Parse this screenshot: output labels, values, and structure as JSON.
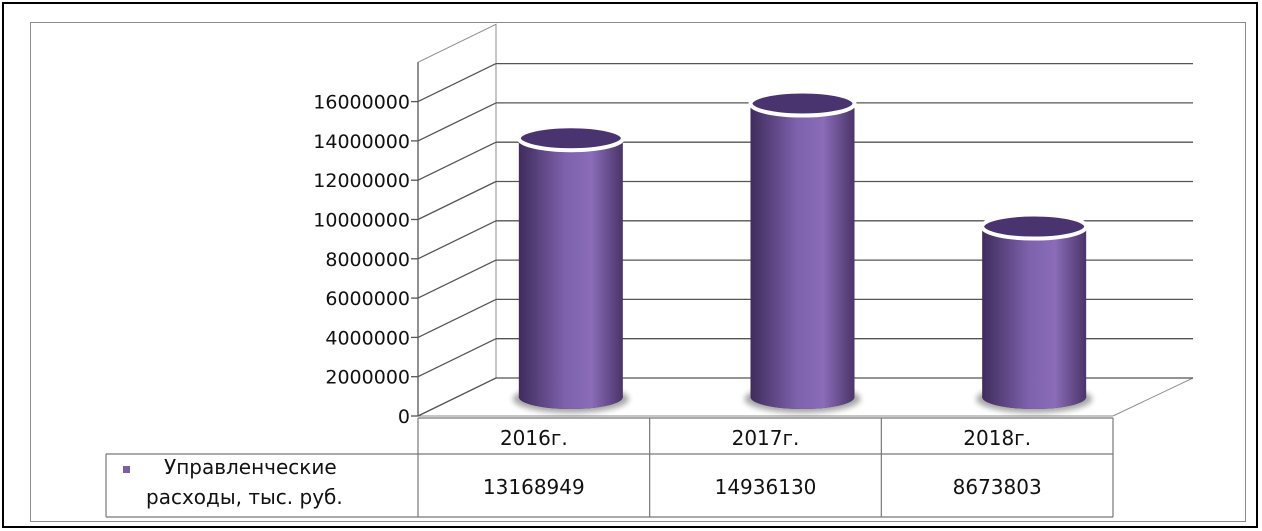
{
  "chart_data": {
    "type": "bar",
    "categories": [
      "2016г.",
      "2017г.",
      "2018г."
    ],
    "series": [
      {
        "name": "Управленческие расходы, тыс. руб.",
        "name_lines": [
          "Управленческие",
          "расходы, тыс. руб."
        ],
        "values": [
          13168949,
          14936130,
          8673803
        ],
        "value_labels": [
          "13168949",
          "14936130",
          "8673803"
        ],
        "color": "#7b5ea7"
      }
    ],
    "y_ticks": [
      "0",
      "2000000",
      "4000000",
      "6000000",
      "8000000",
      "10000000",
      "12000000",
      "14000000",
      "16000000"
    ],
    "ylim": [
      0,
      18000000
    ],
    "grid": true,
    "style": "3d-cylinder",
    "legend": "data-table"
  }
}
